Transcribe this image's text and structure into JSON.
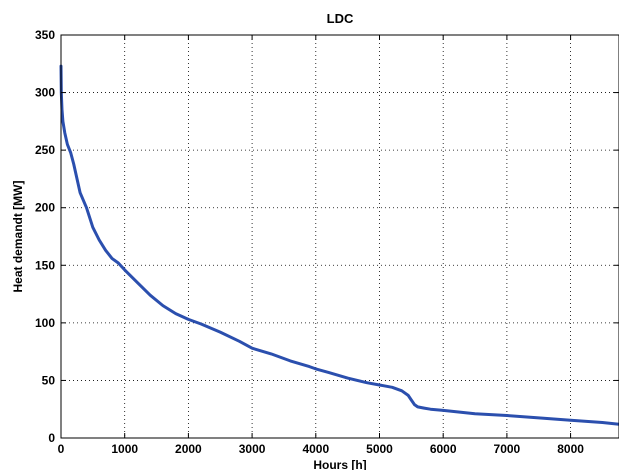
{
  "chart_data": {
    "type": "line",
    "title": "LDC",
    "xlabel": "Hours [h]",
    "ylabel": "Heat demandt [MW]",
    "xlim": [
      0,
      8760
    ],
    "ylim": [
      0,
      350
    ],
    "xticks": [
      0,
      1000,
      2000,
      3000,
      4000,
      5000,
      6000,
      7000,
      8000
    ],
    "yticks": [
      0,
      50,
      100,
      150,
      200,
      250,
      300,
      350
    ],
    "grid": true,
    "line_color": "#2b4fae",
    "series": [
      {
        "x": [
          0,
          5,
          15,
          30,
          60,
          100,
          150,
          200,
          300,
          400,
          500,
          600,
          700,
          800,
          900,
          1000,
          1200,
          1400,
          1600,
          1800,
          2000,
          2200,
          2500,
          2800,
          3000,
          3300,
          3600,
          3900,
          4000,
          4200,
          4500,
          4800,
          5000,
          5200,
          5350,
          5450,
          5500,
          5550,
          5600,
          5700,
          5800,
          6000,
          6500,
          7000,
          7500,
          8000,
          8500,
          8760
        ],
        "y": [
          323,
          300,
          285,
          275,
          265,
          255,
          248,
          238,
          213,
          200,
          183,
          172,
          163,
          156,
          152,
          146,
          135,
          124,
          115,
          108,
          103,
          99,
          92,
          84,
          78,
          73,
          67,
          62,
          60,
          57,
          52,
          48,
          46,
          44,
          41,
          37,
          33,
          29,
          27,
          26,
          25,
          24,
          21,
          19.5,
          17.5,
          15.5,
          13.5,
          12
        ]
      }
    ]
  }
}
